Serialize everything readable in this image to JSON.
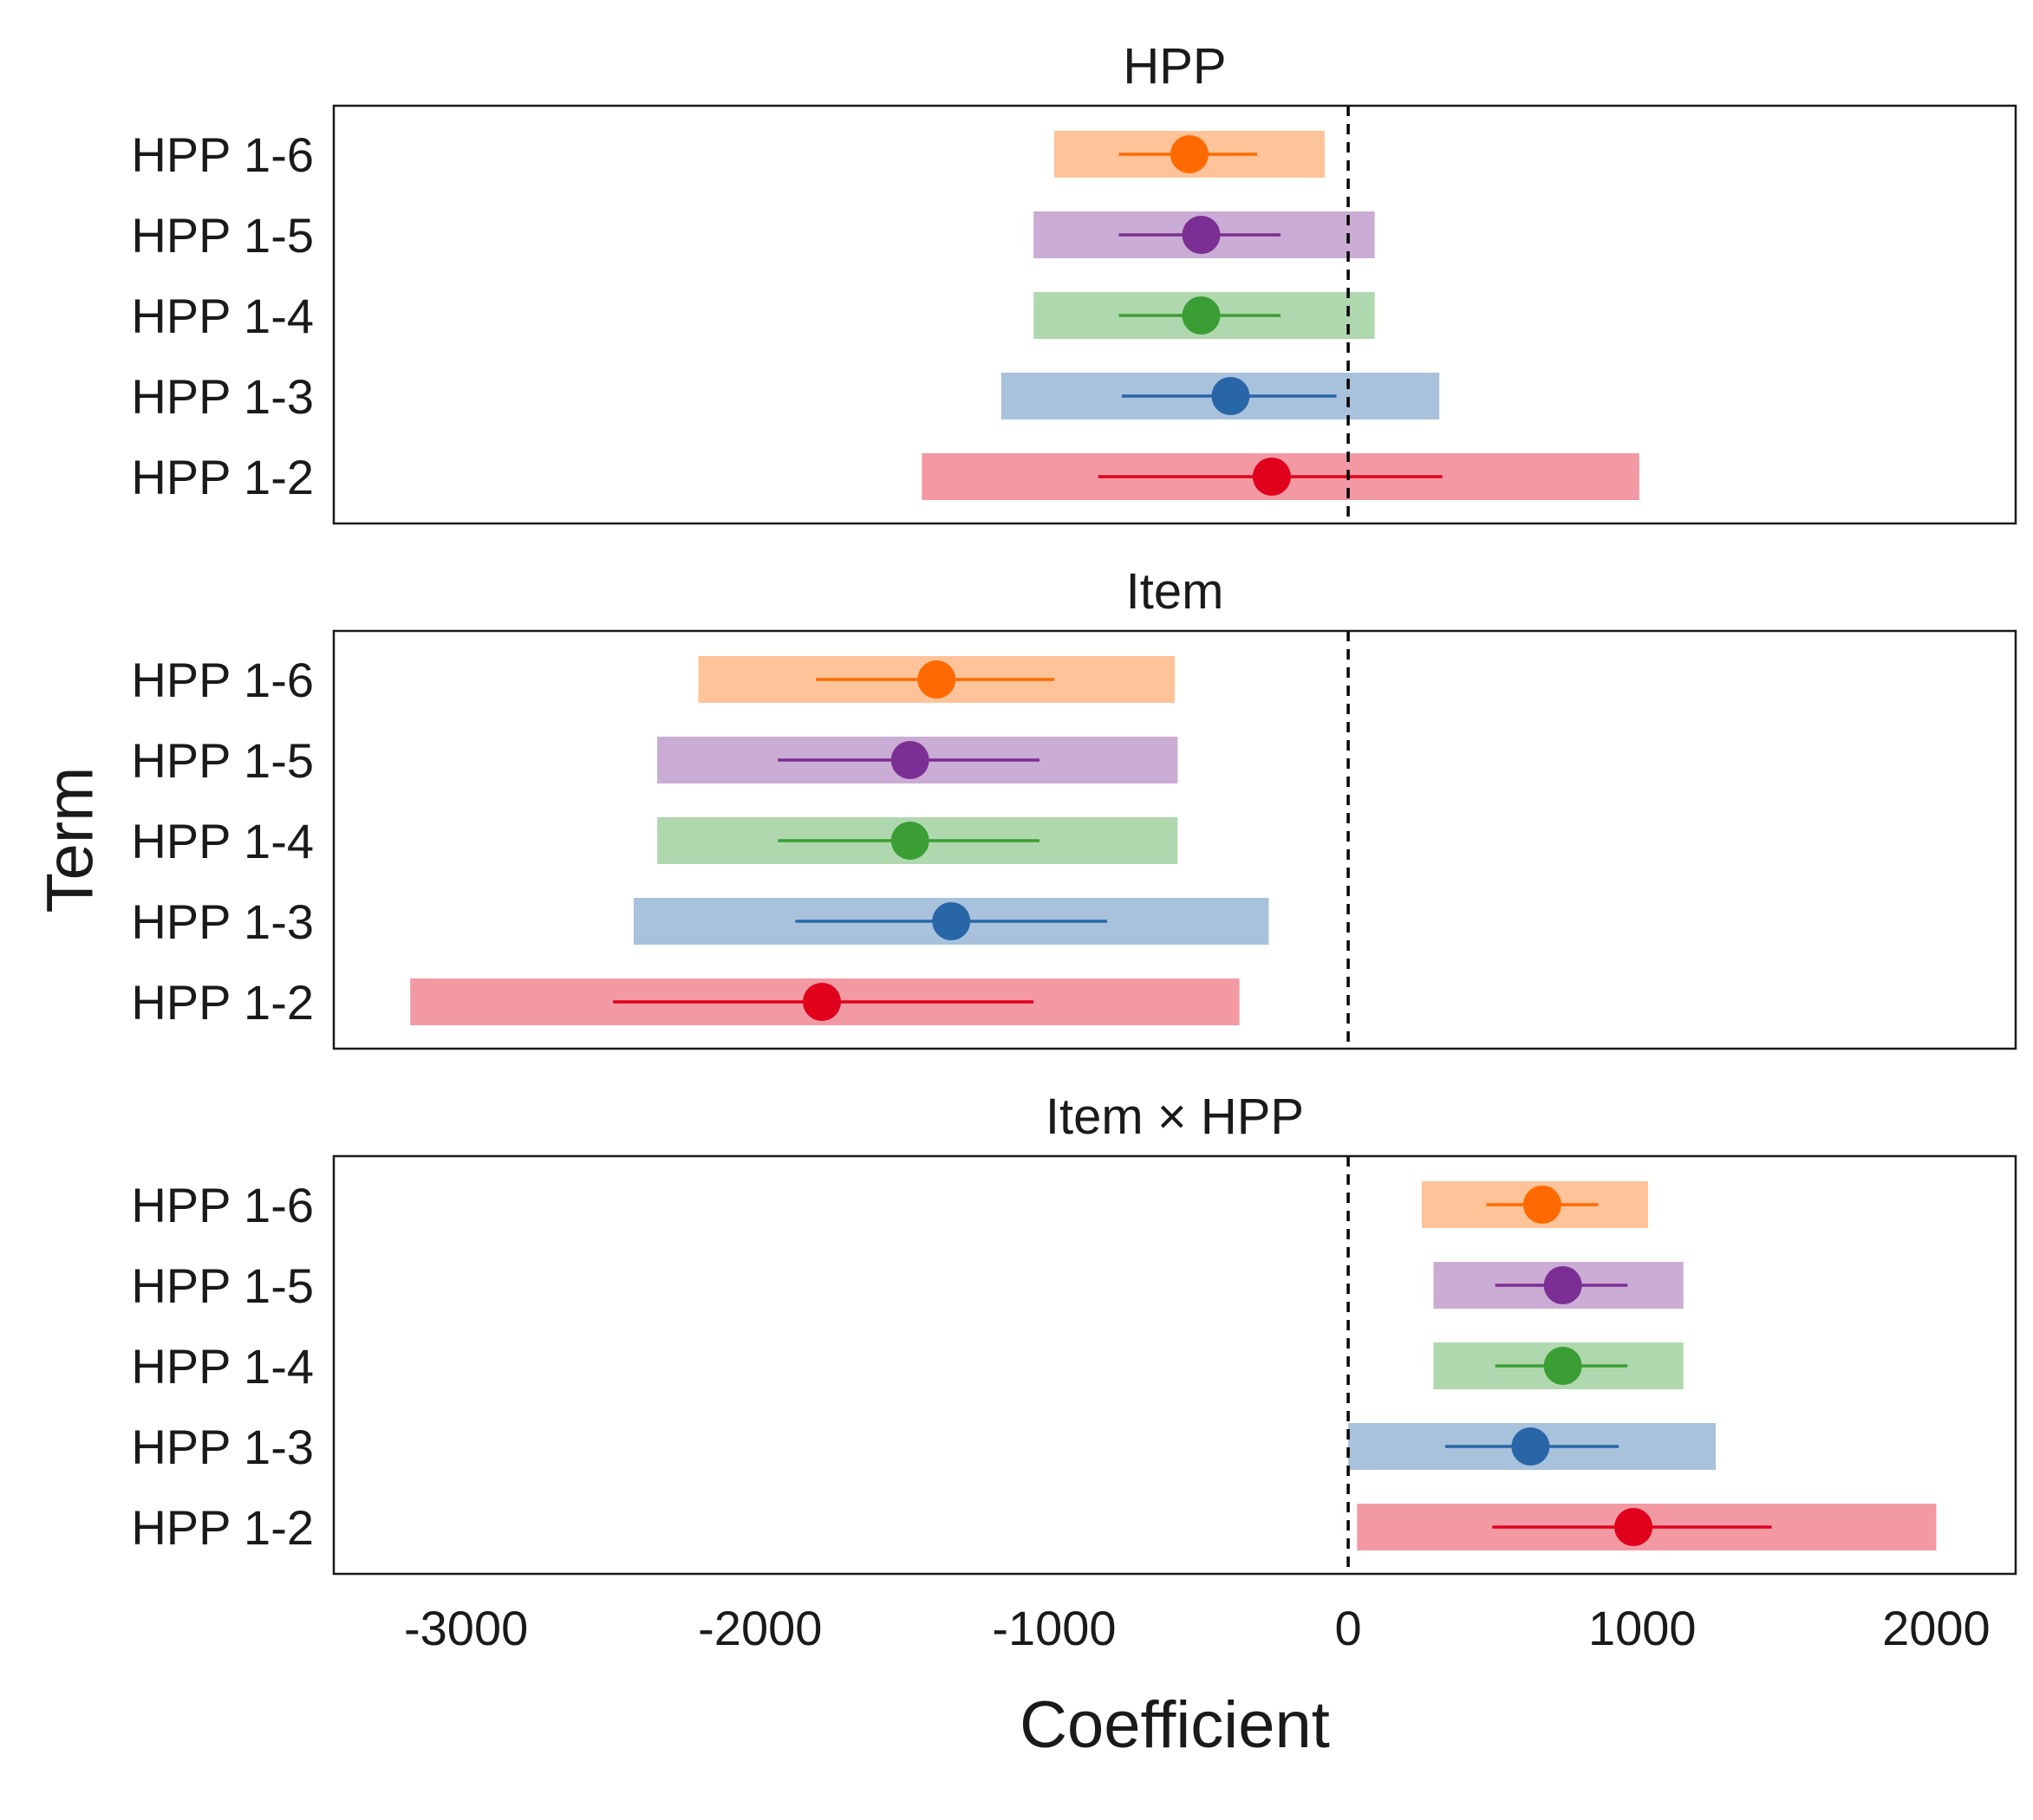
{
  "chart_data": {
    "type": "forest",
    "xlabel": "Coefficient",
    "ylabel": "Term",
    "xlim": [
      -3450,
      2270
    ],
    "xticks": [
      -3000,
      -2000,
      -1000,
      0,
      1000,
      2000
    ],
    "xtick_labels": [
      "-3000",
      "-2000",
      "-1000",
      "0",
      "1000",
      "2000"
    ],
    "reference_line": 0,
    "terms": [
      "HPP 1-6",
      "HPP 1-5",
      "HPP 1-4",
      "HPP 1-3",
      "HPP 1-2"
    ],
    "colors": {
      "HPP 1-6": "#ff6a00",
      "HPP 1-5": "#7b2f94",
      "HPP 1-4": "#3a9e35",
      "HPP 1-3": "#2866a8",
      "HPP 1-2": "#e0001b"
    },
    "panels": [
      {
        "title": "HPP",
        "rows": [
          {
            "term": "HPP 1-6",
            "estimate": -540,
            "ci_inner": [
              -780,
              -310
            ],
            "ci_outer": [
              -1000,
              -80
            ]
          },
          {
            "term": "HPP 1-5",
            "estimate": -500,
            "ci_inner": [
              -780,
              -230
            ],
            "ci_outer": [
              -1070,
              90
            ]
          },
          {
            "term": "HPP 1-4",
            "estimate": -500,
            "ci_inner": [
              -780,
              -230
            ],
            "ci_outer": [
              -1070,
              90
            ]
          },
          {
            "term": "HPP 1-3",
            "estimate": -400,
            "ci_inner": [
              -770,
              -40
            ],
            "ci_outer": [
              -1180,
              310
            ]
          },
          {
            "term": "HPP 1-2",
            "estimate": -260,
            "ci_inner": [
              -850,
              320
            ],
            "ci_outer": [
              -1450,
              990
            ]
          }
        ]
      },
      {
        "title": "Item",
        "rows": [
          {
            "term": "HPP 1-6",
            "estimate": -1400,
            "ci_inner": [
              -1810,
              -1000
            ],
            "ci_outer": [
              -2210,
              -590
            ]
          },
          {
            "term": "HPP 1-5",
            "estimate": -1490,
            "ci_inner": [
              -1940,
              -1050
            ],
            "ci_outer": [
              -2350,
              -580
            ]
          },
          {
            "term": "HPP 1-4",
            "estimate": -1490,
            "ci_inner": [
              -1940,
              -1050
            ],
            "ci_outer": [
              -2350,
              -580
            ]
          },
          {
            "term": "HPP 1-3",
            "estimate": -1350,
            "ci_inner": [
              -1880,
              -820
            ],
            "ci_outer": [
              -2430,
              -270
            ]
          },
          {
            "term": "HPP 1-2",
            "estimate": -1790,
            "ci_inner": [
              -2500,
              -1070
            ],
            "ci_outer": [
              -3190,
              -370
            ]
          }
        ]
      },
      {
        "title": "Item × HPP",
        "rows": [
          {
            "term": "HPP 1-6",
            "estimate": 660,
            "ci_inner": [
              470,
              850
            ],
            "ci_outer": [
              250,
              1020
            ]
          },
          {
            "term": "HPP 1-5",
            "estimate": 730,
            "ci_inner": [
              500,
              950
            ],
            "ci_outer": [
              290,
              1140
            ]
          },
          {
            "term": "HPP 1-4",
            "estimate": 730,
            "ci_inner": [
              500,
              950
            ],
            "ci_outer": [
              290,
              1140
            ]
          },
          {
            "term": "HPP 1-3",
            "estimate": 620,
            "ci_inner": [
              330,
              920
            ],
            "ci_outer": [
              0,
              1250
            ]
          },
          {
            "term": "HPP 1-2",
            "estimate": 970,
            "ci_inner": [
              490,
              1440
            ],
            "ci_outer": [
              30,
              2000
            ]
          }
        ]
      }
    ]
  }
}
